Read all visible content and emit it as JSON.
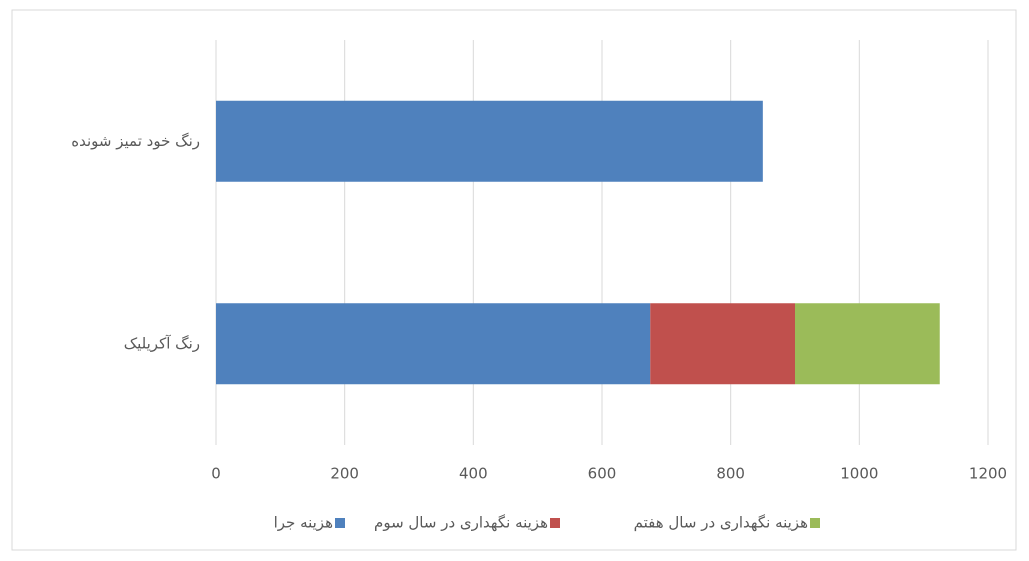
{
  "chart_data": {
    "type": "stacked-bar-horizontal",
    "categories": [
      "رنگ آکریلیک",
      "رنگ خود تمیز شونده"
    ],
    "series": [
      {
        "name": "هزینه جرا",
        "color": "#4f81bd",
        "values": [
          675,
          850
        ]
      },
      {
        "name": "هزینه نگهداری در سال سوم",
        "color": "#c0504d",
        "values": [
          225,
          0
        ]
      },
      {
        "name": "هزینه نگهداری در سال هفتم",
        "color": "#9bbb59",
        "values": [
          225,
          0
        ]
      }
    ],
    "xlim": [
      0,
      1200
    ],
    "xticks": [
      0,
      200,
      400,
      600,
      800,
      1000,
      1200
    ],
    "grid": true,
    "legend": "bottom"
  }
}
